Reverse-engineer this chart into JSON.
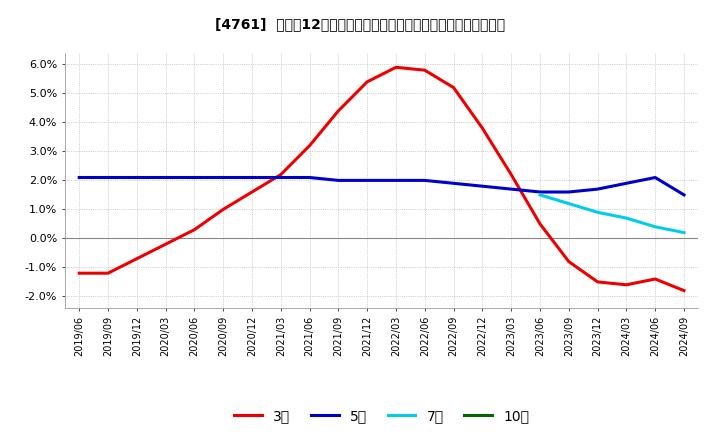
{
  "title": "[4761]  売上高12か月移動合計の対前年同期増減率の平均値の推移",
  "ylim": [
    -0.024,
    0.064
  ],
  "yticks": [
    -0.02,
    -0.01,
    0.0,
    0.01,
    0.02,
    0.03,
    0.04,
    0.05,
    0.06
  ],
  "ytick_labels": [
    "-2.0%",
    "-1.0%",
    "0.0%",
    "1.0%",
    "2.0%",
    "3.0%",
    "4.0%",
    "5.0%",
    "6.0%"
  ],
  "background_color": "#ffffff",
  "grid_color": "#aaaaaa",
  "line_colors": {
    "3yr": "#ee0000",
    "5yr": "#0000cc",
    "7yr": "#00ccee",
    "10yr": "#006600"
  },
  "legend_labels": [
    "3年",
    "5年",
    "7年",
    "10年"
  ],
  "x_labels": [
    "2019/06",
    "2019/09",
    "2019/12",
    "2020/03",
    "2020/06",
    "2020/09",
    "2020/12",
    "2021/03",
    "2021/06",
    "2021/09",
    "2021/12",
    "2022/03",
    "2022/06",
    "2022/09",
    "2022/12",
    "2023/03",
    "2023/06",
    "2023/09",
    "2023/12",
    "2024/03",
    "2024/06",
    "2024/09"
  ],
  "data_3yr": [
    -0.012,
    -0.012,
    -0.007,
    -0.002,
    0.003,
    0.01,
    0.016,
    0.022,
    0.032,
    0.044,
    0.054,
    0.059,
    0.058,
    0.052,
    0.038,
    0.022,
    0.005,
    -0.008,
    -0.015,
    -0.016,
    -0.014,
    -0.018
  ],
  "data_5yr": [
    0.021,
    0.021,
    0.021,
    0.021,
    0.021,
    0.021,
    0.021,
    0.021,
    0.021,
    0.02,
    0.02,
    0.02,
    0.02,
    0.019,
    0.018,
    0.017,
    0.016,
    0.016,
    0.017,
    0.019,
    0.021,
    0.015
  ],
  "data_7yr": [
    null,
    null,
    null,
    null,
    null,
    null,
    null,
    null,
    null,
    null,
    null,
    null,
    null,
    null,
    null,
    null,
    0.015,
    0.012,
    0.009,
    0.007,
    0.004,
    0.002
  ],
  "data_10yr": [
    null,
    null,
    null,
    null,
    null,
    null,
    null,
    null,
    null,
    null,
    null,
    null,
    null,
    null,
    null,
    null,
    null,
    null,
    null,
    null,
    null,
    null
  ]
}
